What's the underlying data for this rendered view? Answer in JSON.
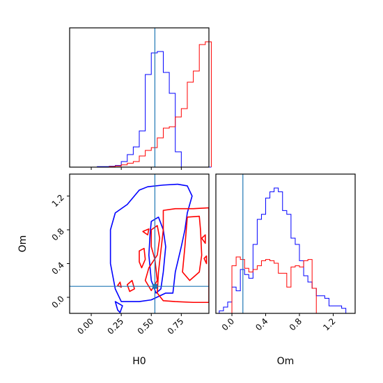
{
  "chart_data": {
    "type": "corner",
    "parameters": [
      "H0",
      "Om"
    ],
    "truth": {
      "H0": 0.53,
      "Om": 0.13
    },
    "colors": {
      "sample_a": "#0000ff",
      "sample_b": "#ff0000",
      "truth": "#1f77b4"
    },
    "axes": {
      "H0": {
        "label": "H0",
        "range": [
          -0.18,
          0.98
        ],
        "ticks": [
          0.0,
          0.25,
          0.5,
          0.75
        ],
        "tick_labels": [
          "0.00",
          "0.25",
          "0.50",
          "0.75"
        ]
      },
      "Om": {
        "label": "Om",
        "range": [
          -0.19,
          1.46
        ],
        "ticks": [
          0.0,
          0.4,
          0.8,
          1.2
        ],
        "tick_labels": [
          "0.0",
          "0.4",
          "0.8",
          "1.2"
        ]
      }
    },
    "hist_H0": {
      "bins": [
        [
          0.05,
          0.1,
          0.004,
          0.0
        ],
        [
          0.1,
          0.15,
          0.004,
          0.0
        ],
        [
          0.15,
          0.2,
          0.006,
          0.004
        ],
        [
          0.2,
          0.25,
          0.012,
          0.008
        ],
        [
          0.25,
          0.3,
          0.04,
          0.016
        ],
        [
          0.3,
          0.35,
          0.09,
          0.028
        ],
        [
          0.35,
          0.4,
          0.145,
          0.04
        ],
        [
          0.4,
          0.45,
          0.26,
          0.08
        ],
        [
          0.45,
          0.5,
          0.665,
          0.12
        ],
        [
          0.5,
          0.55,
          0.82,
          0.14
        ],
        [
          0.55,
          0.6,
          0.83,
          0.21
        ],
        [
          0.6,
          0.65,
          0.68,
          0.28
        ],
        [
          0.65,
          0.7,
          0.53,
          0.29
        ],
        [
          0.7,
          0.75,
          0.11,
          0.36
        ],
        [
          0.75,
          0.8,
          0.0,
          0.42
        ],
        [
          0.8,
          0.85,
          0.0,
          0.61
        ],
        [
          0.85,
          0.9,
          0.0,
          0.69
        ],
        [
          0.9,
          0.95,
          0.0,
          0.88
        ],
        [
          0.95,
          1.0,
          0.0,
          0.9
        ]
      ]
    },
    "hist_Om": {
      "bins": [
        [
          -0.15,
          -0.1,
          0.02,
          0.0
        ],
        [
          -0.1,
          -0.05,
          0.05,
          0.0
        ],
        [
          -0.05,
          0.0,
          0.09,
          0.0
        ],
        [
          0.0,
          0.05,
          0.21,
          0.38
        ],
        [
          0.05,
          0.1,
          0.18,
          0.45
        ],
        [
          0.1,
          0.15,
          0.35,
          0.43
        ],
        [
          0.15,
          0.2,
          0.31,
          0.36
        ],
        [
          0.2,
          0.25,
          0.28,
          0.33
        ],
        [
          0.25,
          0.3,
          0.55,
          0.35
        ],
        [
          0.3,
          0.35,
          0.75,
          0.38
        ],
        [
          0.35,
          0.4,
          0.79,
          0.42
        ],
        [
          0.4,
          0.45,
          0.92,
          0.43
        ],
        [
          0.45,
          0.5,
          0.97,
          0.42
        ],
        [
          0.5,
          0.55,
          1.0,
          0.4
        ],
        [
          0.55,
          0.6,
          0.97,
          0.32
        ],
        [
          0.6,
          0.65,
          0.82,
          0.32
        ],
        [
          0.65,
          0.7,
          0.79,
          0.21
        ],
        [
          0.7,
          0.75,
          0.6,
          0.37
        ],
        [
          0.75,
          0.8,
          0.55,
          0.38
        ],
        [
          0.8,
          0.85,
          0.42,
          0.37
        ],
        [
          0.85,
          0.9,
          0.3,
          0.42
        ],
        [
          0.9,
          0.95,
          0.25,
          0.43
        ],
        [
          0.95,
          1.0,
          0.2,
          0.2
        ],
        [
          1.0,
          1.05,
          0.14,
          0.0
        ],
        [
          1.05,
          1.1,
          0.14,
          0.0
        ],
        [
          1.1,
          1.15,
          0.12,
          0.0
        ],
        [
          1.15,
          1.2,
          0.06,
          0.0
        ],
        [
          1.2,
          1.25,
          0.06,
          0.0
        ],
        [
          1.25,
          1.3,
          0.06,
          0.0
        ],
        [
          1.3,
          1.35,
          0.04,
          0.0
        ]
      ]
    },
    "contours": {
      "blue": [
        [
          [
            0.4,
            1.27
          ],
          [
            0.47,
            1.31
          ],
          [
            0.6,
            1.33
          ],
          [
            0.72,
            1.34
          ],
          [
            0.8,
            1.32
          ],
          [
            0.84,
            1.2
          ],
          [
            0.8,
            1.0
          ],
          [
            0.78,
            0.8
          ],
          [
            0.75,
            0.6
          ],
          [
            0.7,
            0.3
          ],
          [
            0.68,
            0.05
          ],
          [
            0.62,
            0.05
          ],
          [
            0.5,
            -0.03
          ],
          [
            0.4,
            -0.05
          ],
          [
            0.25,
            -0.05
          ],
          [
            0.2,
            0.1
          ],
          [
            0.16,
            0.4
          ],
          [
            0.16,
            0.8
          ],
          [
            0.2,
            1.0
          ],
          [
            0.3,
            1.1
          ],
          [
            0.4,
            1.27
          ]
        ],
        [
          [
            0.5,
            0.9
          ],
          [
            0.56,
            0.95
          ],
          [
            0.6,
            0.8
          ],
          [
            0.62,
            0.6
          ],
          [
            0.6,
            0.3
          ],
          [
            0.58,
            0.1
          ],
          [
            0.54,
            0.05
          ],
          [
            0.5,
            0.2
          ],
          [
            0.48,
            0.5
          ],
          [
            0.49,
            0.75
          ],
          [
            0.5,
            0.9
          ]
        ],
        [
          [
            0.2,
            -0.05
          ],
          [
            0.22,
            -0.15
          ],
          [
            0.24,
            -0.18
          ],
          [
            0.26,
            -0.1
          ],
          [
            0.2,
            -0.05
          ]
        ]
      ],
      "red": [
        [
          [
            0.6,
            1.03
          ],
          [
            0.7,
            1.05
          ],
          [
            0.85,
            1.05
          ],
          [
            0.98,
            1.06
          ],
          [
            0.98,
            -0.06
          ],
          [
            0.85,
            -0.06
          ],
          [
            0.7,
            -0.05
          ],
          [
            0.6,
            -0.04
          ],
          [
            0.55,
            0.05
          ],
          [
            0.56,
            0.3
          ],
          [
            0.58,
            0.55
          ],
          [
            0.6,
            0.8
          ],
          [
            0.6,
            1.03
          ]
        ],
        [
          [
            0.5,
            0.8
          ],
          [
            0.55,
            0.85
          ],
          [
            0.57,
            0.7
          ],
          [
            0.55,
            0.5
          ],
          [
            0.48,
            0.35
          ],
          [
            0.45,
            0.2
          ],
          [
            0.5,
            0.08
          ],
          [
            0.55,
            0.2
          ],
          [
            0.53,
            0.45
          ],
          [
            0.5,
            0.6
          ],
          [
            0.5,
            0.8
          ]
        ],
        [
          [
            0.8,
            0.95
          ],
          [
            0.9,
            0.96
          ],
          [
            0.91,
            0.8
          ],
          [
            0.92,
            0.5
          ],
          [
            0.9,
            0.3
          ],
          [
            0.82,
            0.2
          ],
          [
            0.76,
            0.3
          ],
          [
            0.78,
            0.6
          ],
          [
            0.8,
            0.95
          ]
        ],
        [
          [
            0.4,
            0.55
          ],
          [
            0.44,
            0.58
          ],
          [
            0.45,
            0.45
          ],
          [
            0.42,
            0.35
          ],
          [
            0.4,
            0.42
          ],
          [
            0.4,
            0.55
          ]
        ],
        [
          [
            0.3,
            0.15
          ],
          [
            0.34,
            0.2
          ],
          [
            0.36,
            0.1
          ],
          [
            0.32,
            0.07
          ],
          [
            0.3,
            0.15
          ]
        ],
        [
          [
            0.22,
            0.14
          ],
          [
            0.24,
            0.18
          ],
          [
            0.25,
            0.12
          ],
          [
            0.22,
            0.14
          ]
        ],
        [
          [
            0.43,
            0.78
          ],
          [
            0.48,
            0.81
          ],
          [
            0.47,
            0.74
          ],
          [
            0.43,
            0.78
          ]
        ],
        [
          [
            0.92,
            0.7
          ],
          [
            0.95,
            0.74
          ],
          [
            0.95,
            0.64
          ],
          [
            0.92,
            0.7
          ]
        ],
        [
          [
            0.94,
            0.46
          ],
          [
            0.96,
            0.49
          ],
          [
            0.96,
            0.4
          ],
          [
            0.94,
            0.46
          ]
        ]
      ]
    }
  }
}
